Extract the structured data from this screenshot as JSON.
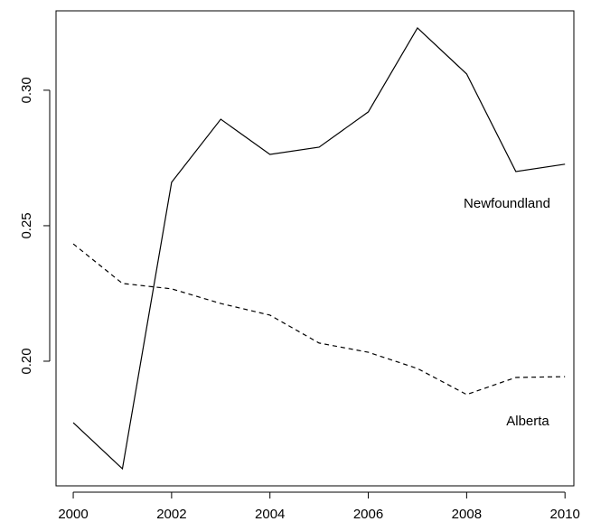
{
  "chart_data": {
    "type": "line",
    "x": [
      2000,
      2001,
      2002,
      2003,
      2004,
      2005,
      2006,
      2007,
      2008,
      2009,
      2010
    ],
    "series": [
      {
        "name": "Newfoundland",
        "color": "#000000",
        "dash": "solid",
        "values": [
          0.1773,
          0.1603,
          0.266,
          0.2893,
          0.2763,
          0.279,
          0.292,
          0.323,
          0.306,
          0.27,
          0.2727
        ]
      },
      {
        "name": "Alberta",
        "color": "#000000",
        "dash": "dashed",
        "values": [
          0.2433,
          0.2287,
          0.2267,
          0.2213,
          0.217,
          0.2067,
          0.2033,
          0.1973,
          0.1877,
          0.194,
          0.1943
        ]
      }
    ],
    "annotations": [
      "Newfoundland",
      "Alberta"
    ],
    "xlim": [
      1999.65,
      2010.18
    ],
    "ylim": [
      0.154,
      0.3293
    ],
    "xticks": [
      2000,
      2002,
      2004,
      2006,
      2008,
      2010
    ],
    "yticks": [
      {
        "value": 0.2,
        "label": "0.20"
      },
      {
        "value": 0.25,
        "label": "0.25"
      },
      {
        "value": 0.3,
        "label": "0.30"
      }
    ],
    "grid": false
  }
}
